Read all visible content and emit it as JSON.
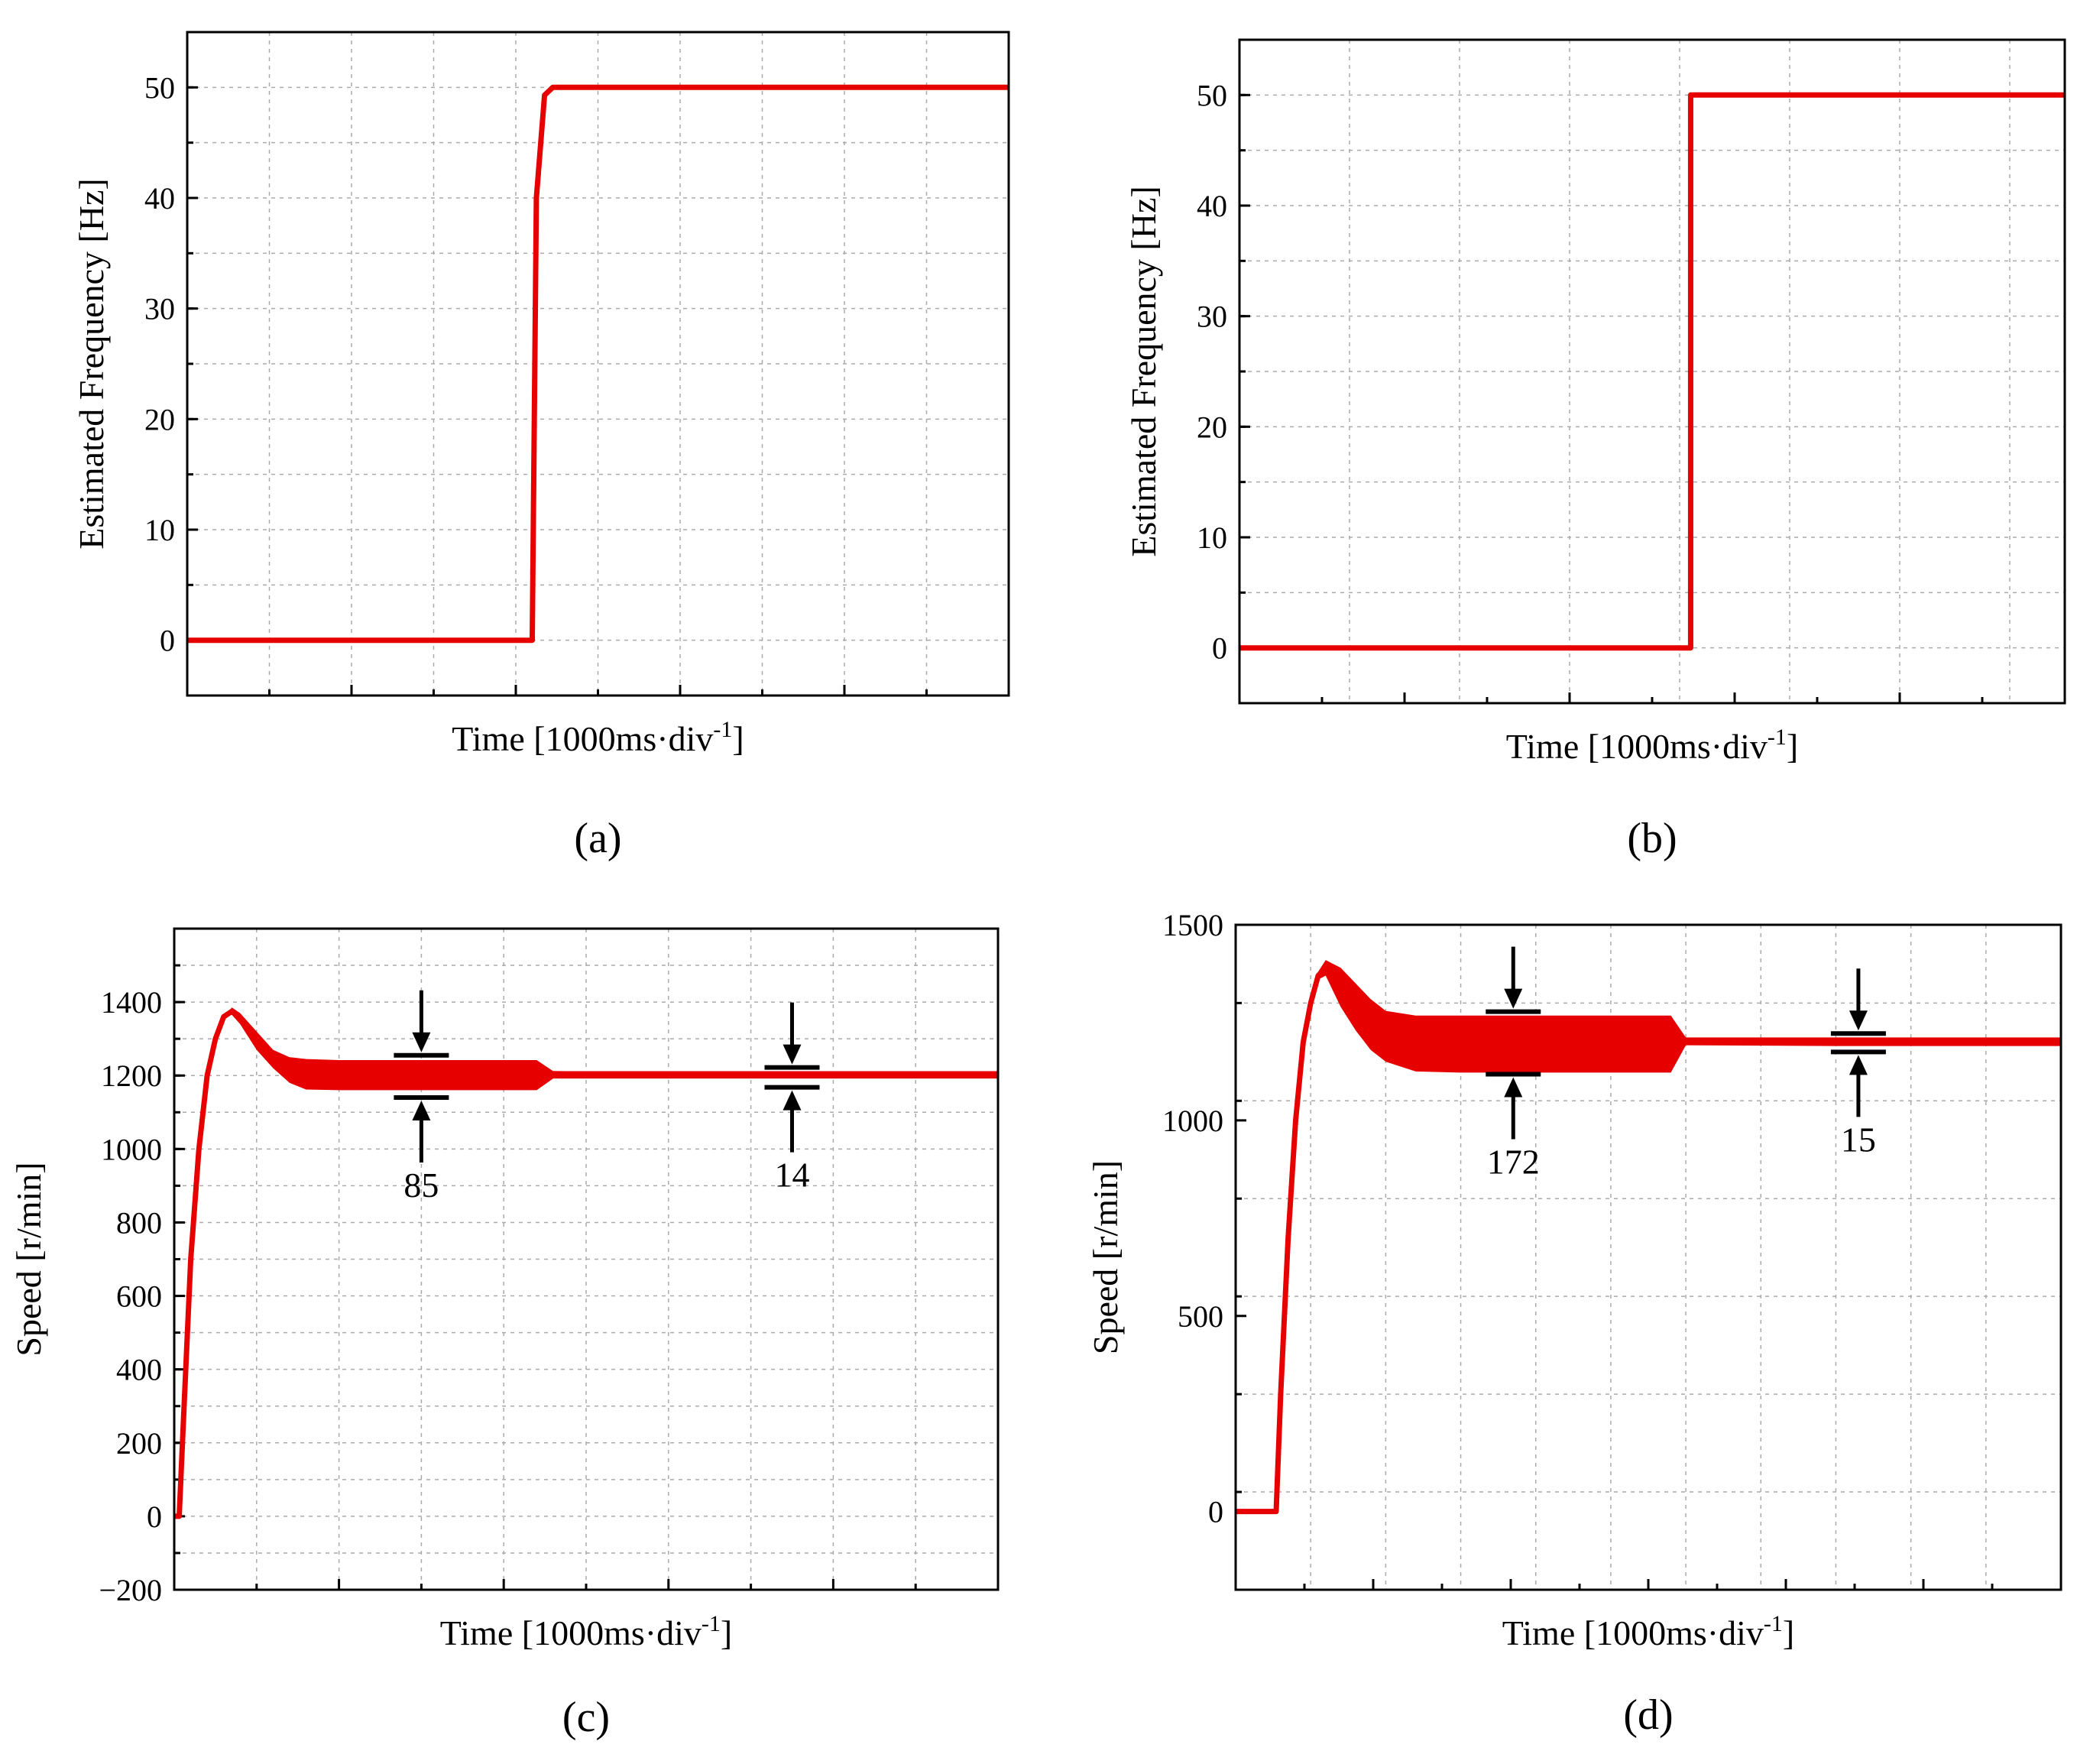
{
  "colors": {
    "trace": "#e60000",
    "axis": "#000000",
    "grid": "#aaaaaa",
    "background": "#ffffff"
  },
  "chart_data": [
    {
      "id": "a",
      "type": "line",
      "caption": "(a)",
      "xlabel_main": "Time [1000ms·div",
      "xlabel_sup": "-1",
      "xlabel_close": "]",
      "ylabel": "Estimated Frequency [Hz]",
      "x_unit": "div",
      "xlim": [
        0,
        10
      ],
      "ylim": [
        -5,
        55
      ],
      "yticks": [
        0,
        10,
        20,
        30,
        40,
        50
      ],
      "ytick_labels": [
        "0",
        "10",
        "20",
        "30",
        "40",
        "50"
      ],
      "series": [
        {
          "name": "estimated frequency",
          "x": [
            0,
            4.2,
            4.25,
            4.35,
            4.45,
            10
          ],
          "y": [
            0,
            0,
            40,
            49.3,
            50,
            50
          ]
        }
      ],
      "annotations": []
    },
    {
      "id": "b",
      "type": "line",
      "caption": "(b)",
      "xlabel_main": "Time [1000ms·div",
      "xlabel_sup": "-1",
      "xlabel_close": "]",
      "ylabel": "Estimated Frequency [Hz]",
      "x_unit": "div",
      "xlim": [
        0,
        7.5
      ],
      "ylim": [
        -5,
        55
      ],
      "yticks": [
        0,
        10,
        20,
        30,
        40,
        50
      ],
      "ytick_labels": [
        "0",
        "10",
        "20",
        "30",
        "40",
        "50"
      ],
      "series": [
        {
          "name": "estimated frequency",
          "x": [
            0,
            4.1,
            4.1,
            7.5
          ],
          "y": [
            0,
            0,
            50,
            50
          ]
        }
      ],
      "annotations": []
    },
    {
      "id": "c",
      "type": "line",
      "caption": "(c)",
      "xlabel_main": "Time [1000ms·div",
      "xlabel_sup": "-1",
      "xlabel_close": "]",
      "ylabel": "Speed [r/min]",
      "x_unit": "div",
      "xlim": [
        0,
        5
      ],
      "ylim": [
        -200,
        1600
      ],
      "yticks": [
        -200,
        0,
        200,
        400,
        600,
        800,
        1000,
        1200,
        1400
      ],
      "ytick_labels": [
        "−200",
        "0",
        "200",
        "400",
        "600",
        "800",
        "1000",
        "1200",
        "1400"
      ],
      "series": [
        {
          "name": "speed",
          "x": [
            0,
            0.03,
            0.06,
            0.1,
            0.15,
            0.2,
            0.25,
            0.3,
            0.35,
            0.4,
            0.5,
            0.6,
            0.7,
            0.8,
            1.0,
            1.2,
            1.5,
            2.2,
            2.3,
            3.0,
            4.0,
            5.0
          ],
          "y": [
            0,
            0,
            300,
            700,
            1000,
            1200,
            1300,
            1360,
            1375,
            1355,
            1300,
            1250,
            1225,
            1210,
            1200,
            1200,
            1200,
            1200,
            1205,
            1200,
            1200,
            1200
          ],
          "upper": [
            0,
            0,
            300,
            700,
            1000,
            1200,
            1300,
            1360,
            1385,
            1370,
            1320,
            1270,
            1250,
            1245,
            1242,
            1242,
            1242,
            1242,
            1212,
            1212,
            1212,
            1212
          ],
          "lower": [
            0,
            0,
            300,
            700,
            1000,
            1200,
            1300,
            1360,
            1365,
            1340,
            1270,
            1220,
            1180,
            1162,
            1160,
            1160,
            1160,
            1160,
            1192,
            1192,
            1192,
            1192
          ]
        }
      ],
      "annotations": [
        {
          "label": "85",
          "x": 1.5,
          "top": 1255,
          "bottom": 1140
        },
        {
          "label": "14",
          "x": 3.75,
          "top": 1222,
          "bottom": 1168
        }
      ]
    },
    {
      "id": "d",
      "type": "line",
      "caption": "(d)",
      "xlabel_main": "Time [1000ms·div",
      "xlabel_sup": "-1",
      "xlabel_close": "]",
      "ylabel": "Speed [r/min]",
      "x_unit": "div",
      "xlim": [
        0,
        5.5
      ],
      "ylim": [
        -200,
        1500
      ],
      "yticks": [
        0,
        500,
        1000,
        1500
      ],
      "ytick_labels": [
        "0",
        "500",
        "1000",
        "1500"
      ],
      "series": [
        {
          "name": "speed",
          "x": [
            0,
            0.27,
            0.3,
            0.35,
            0.4,
            0.45,
            0.5,
            0.55,
            0.6,
            0.7,
            0.8,
            0.9,
            1.0,
            1.2,
            1.5,
            2.0,
            2.9,
            3.0,
            4.0,
            5.5
          ],
          "y": [
            0,
            0,
            300,
            700,
            1000,
            1200,
            1300,
            1370,
            1390,
            1340,
            1290,
            1250,
            1215,
            1200,
            1200,
            1200,
            1200,
            1205,
            1200,
            1200
          ],
          "upper": [
            0,
            0,
            300,
            700,
            1000,
            1200,
            1300,
            1380,
            1410,
            1390,
            1350,
            1310,
            1280,
            1268,
            1268,
            1268,
            1268,
            1212,
            1212,
            1212
          ],
          "lower": [
            0,
            0,
            300,
            700,
            1000,
            1200,
            1300,
            1360,
            1370,
            1290,
            1230,
            1180,
            1150,
            1125,
            1122,
            1122,
            1122,
            1192,
            1190,
            1190
          ]
        }
      ],
      "annotations": [
        {
          "label": "172",
          "x": 1.85,
          "top": 1278,
          "bottom": 1118
        },
        {
          "label": "15",
          "x": 4.15,
          "top": 1222,
          "bottom": 1175
        }
      ]
    }
  ]
}
